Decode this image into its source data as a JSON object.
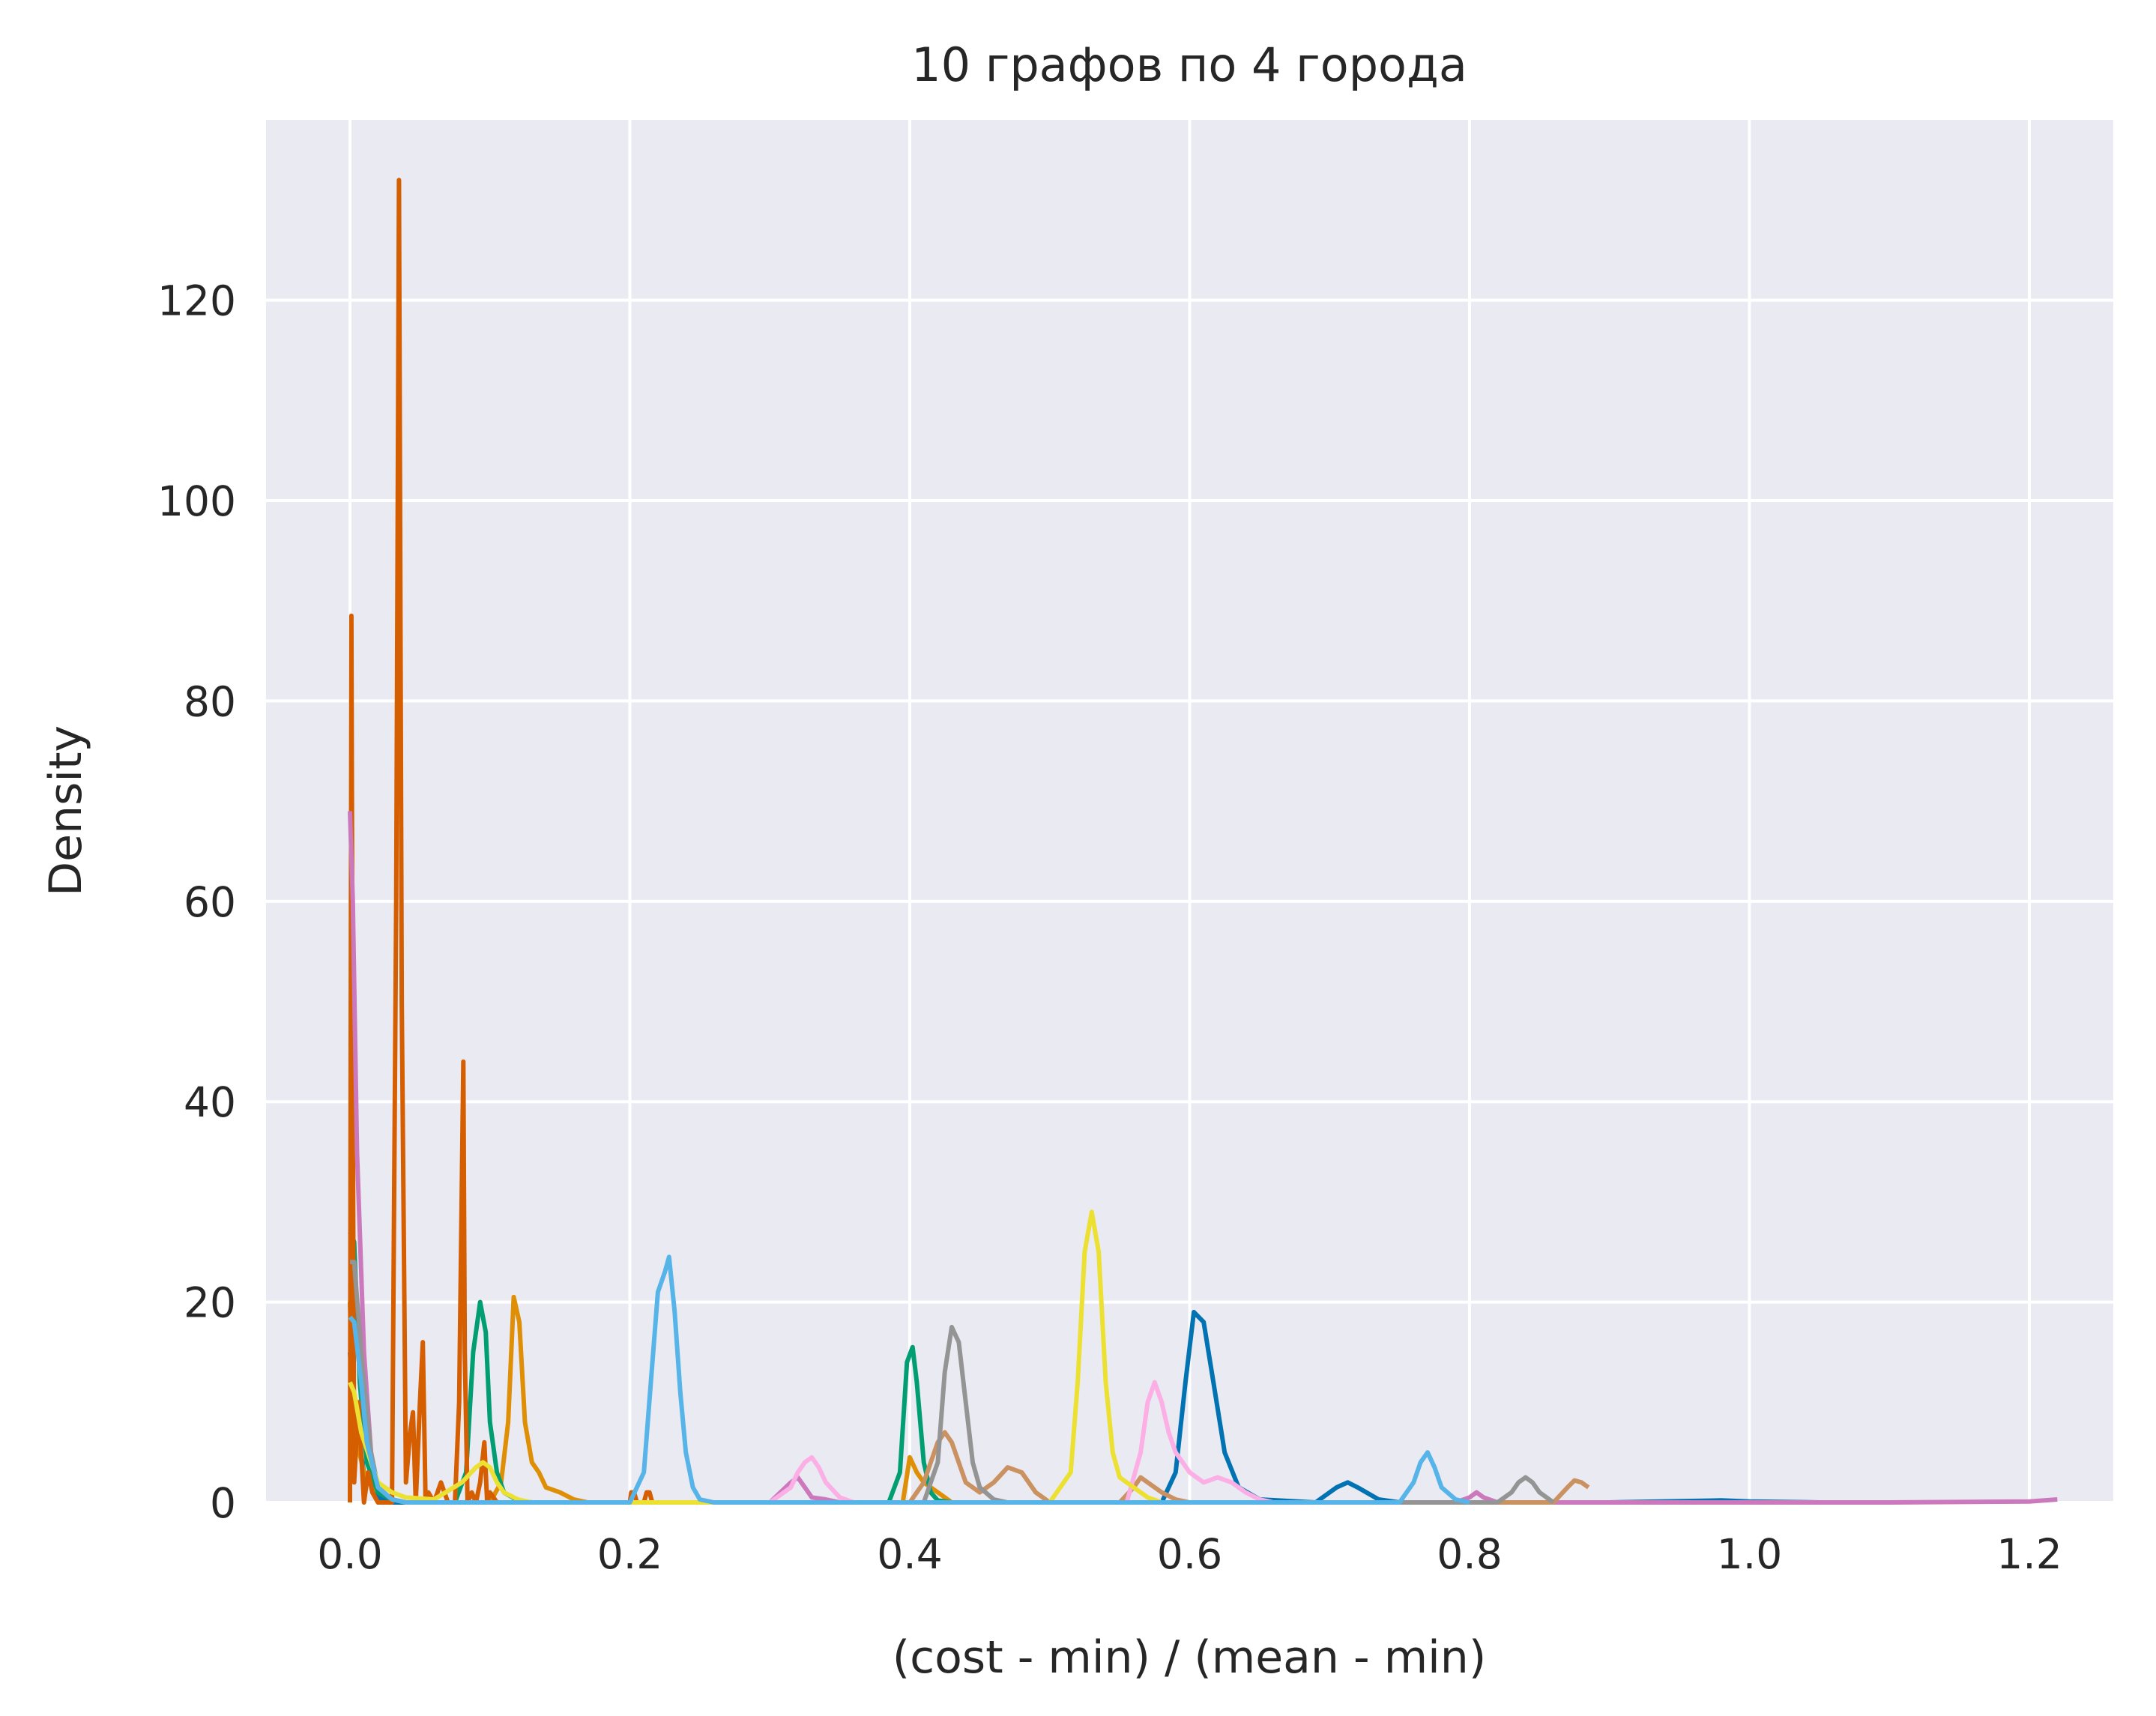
{
  "chart_data": {
    "type": "line",
    "title": "10 графов по 4 города",
    "xlabel": "(cost - min) / (mean - min)",
    "ylabel": "Density",
    "xlim": [
      -0.06,
      1.26
    ],
    "ylim": [
      0,
      138
    ],
    "xticks": [
      0.0,
      0.2,
      0.4,
      0.6,
      0.8,
      1.0,
      1.2
    ],
    "xtick_labels": [
      "0.0",
      "0.2",
      "0.4",
      "0.6",
      "0.8",
      "1.0",
      "1.2"
    ],
    "yticks": [
      0,
      20,
      40,
      60,
      80,
      100,
      120
    ],
    "ytick_labels": [
      "0",
      "20",
      "40",
      "60",
      "80",
      "100",
      "120"
    ],
    "grid": true,
    "legend": "none",
    "colors": {
      "background": "#eaeaf2",
      "grid": "#ffffff",
      "text": "#262626"
    },
    "series": [
      {
        "color": "#0173b2",
        "x": [
          0.0,
          0.003,
          0.01,
          0.02,
          0.03,
          0.58,
          0.59,
          0.597,
          0.603,
          0.61,
          0.617,
          0.625,
          0.635,
          0.65,
          0.69,
          0.705,
          0.713,
          0.72,
          0.735,
          0.75,
          0.9,
          0.98,
          1.0,
          1.05
        ],
        "y": [
          15,
          9,
          3,
          0.5,
          0,
          0,
          3,
          12,
          19,
          18,
          12,
          5,
          1.5,
          0.3,
          0,
          1.5,
          2,
          1.5,
          0.3,
          0,
          0,
          0.2,
          0.1,
          0
        ]
      },
      {
        "color": "#de8f05",
        "x": [
          0.0,
          0.002,
          0.005,
          0.01,
          0.02,
          0.03,
          0.04,
          0.1,
          0.108,
          0.113,
          0.117,
          0.121,
          0.125,
          0.13,
          0.135,
          0.14,
          0.15,
          0.16,
          0.17,
          0.2,
          0.395,
          0.4,
          0.405,
          0.41,
          0.42,
          0.43
        ],
        "y": [
          20,
          10,
          6,
          3,
          1,
          0.3,
          0,
          0,
          2,
          8,
          20.5,
          18,
          8,
          4,
          3,
          1.5,
          1,
          0.3,
          0,
          0,
          0,
          4.5,
          3,
          2,
          1,
          0
        ]
      },
      {
        "color": "#029e73",
        "x": [
          0.0,
          0.003,
          0.007,
          0.012,
          0.02,
          0.03,
          0.04,
          0.075,
          0.083,
          0.088,
          0.093,
          0.097,
          0.1,
          0.105,
          0.11,
          0.12,
          0.13,
          0.385,
          0.393,
          0.398,
          0.402,
          0.405,
          0.41,
          0.415,
          0.42,
          0.43
        ],
        "y": [
          27,
          26,
          12,
          4,
          1,
          0.3,
          0,
          0,
          3,
          15,
          20,
          17,
          8,
          3,
          1,
          0.2,
          0,
          0,
          3,
          14,
          15.5,
          12,
          4,
          1,
          0.2,
          0
        ]
      },
      {
        "color": "#d55e00",
        "x": [
          0.0,
          0.001,
          0.002,
          0.003,
          0.006,
          0.01,
          0.013,
          0.016,
          0.02,
          0.03,
          0.033,
          0.035,
          0.037,
          0.04,
          0.043,
          0.045,
          0.047,
          0.05,
          0.052,
          0.054,
          0.056,
          0.06,
          0.065,
          0.07,
          0.075,
          0.078,
          0.081,
          0.082,
          0.084,
          0.087,
          0.09,
          0.093,
          0.096,
          0.098,
          0.1,
          0.105,
          0.2,
          0.201,
          0.203,
          0.205,
          0.21,
          0.212,
          0.214,
          0.216
        ],
        "y": [
          0,
          88.5,
          40,
          2,
          10,
          0,
          3,
          1,
          0,
          0,
          60,
          132,
          50,
          2,
          7,
          9,
          0,
          10,
          16,
          0,
          1,
          0,
          2,
          0,
          0,
          10,
          44,
          15,
          0,
          1,
          0,
          2,
          6,
          0,
          1,
          0,
          0,
          1,
          1,
          0,
          0,
          1,
          1,
          0
        ]
      },
      {
        "color": "#cc78bc",
        "x": [
          0.0,
          0.002,
          0.005,
          0.01,
          0.015,
          0.02,
          0.03,
          0.04,
          0.3,
          0.315,
          0.32,
          0.325,
          0.33,
          0.34,
          0.35,
          0.79,
          0.8,
          0.805,
          0.81,
          0.82,
          1.1,
          1.2,
          1.22
        ],
        "y": [
          69,
          60,
          35,
          15,
          5,
          1.5,
          0.3,
          0,
          0,
          2,
          2.5,
          1.5,
          0.5,
          0.3,
          0,
          0,
          0.5,
          1,
          0.5,
          0,
          0,
          0.1,
          0.3
        ]
      },
      {
        "color": "#ca9161",
        "x": [
          0.4,
          0.41,
          0.415,
          0.42,
          0.425,
          0.43,
          0.44,
          0.45,
          0.46,
          0.47,
          0.48,
          0.49,
          0.5,
          0.55,
          0.56,
          0.565,
          0.57,
          0.58,
          0.59,
          0.6,
          0.86,
          0.87,
          0.875,
          0.88,
          0.885
        ],
        "y": [
          0,
          2,
          4,
          6,
          7,
          6,
          2,
          1,
          2,
          3.5,
          3,
          1,
          0,
          0,
          1.5,
          2.5,
          2,
          1,
          0.3,
          0,
          0,
          1.5,
          2.2,
          2,
          1.5
        ]
      },
      {
        "color": "#fbafe4",
        "x": [
          0.3,
          0.315,
          0.32,
          0.325,
          0.33,
          0.335,
          0.34,
          0.35,
          0.36,
          0.555,
          0.565,
          0.57,
          0.575,
          0.58,
          0.585,
          0.59,
          0.6,
          0.61,
          0.62,
          0.63,
          0.64,
          0.65,
          0.66
        ],
        "y": [
          0,
          1.5,
          3,
          4,
          4.5,
          3.5,
          2,
          0.5,
          0,
          0,
          5,
          10,
          12,
          10,
          7,
          5,
          3,
          2,
          2.5,
          2,
          1,
          0.3,
          0
        ]
      },
      {
        "color": "#949494",
        "x": [
          0.0,
          0.003,
          0.008,
          0.015,
          0.02,
          0.03,
          0.04,
          0.41,
          0.42,
          0.425,
          0.43,
          0.435,
          0.44,
          0.445,
          0.45,
          0.46,
          0.47,
          0.82,
          0.83,
          0.835,
          0.84,
          0.845,
          0.85,
          0.86
        ],
        "y": [
          24,
          24,
          15,
          5,
          1.5,
          0.3,
          0,
          0,
          4,
          13,
          17.5,
          16,
          10,
          4,
          1.5,
          0.3,
          0,
          0,
          1,
          2,
          2.5,
          2,
          1,
          0
        ]
      },
      {
        "color": "#ece133",
        "x": [
          0.0,
          0.003,
          0.008,
          0.015,
          0.02,
          0.025,
          0.03,
          0.04,
          0.06,
          0.08,
          0.09,
          0.095,
          0.1,
          0.105,
          0.11,
          0.12,
          0.13,
          0.5,
          0.515,
          0.52,
          0.525,
          0.53,
          0.535,
          0.54,
          0.545,
          0.55,
          0.56,
          0.57,
          0.58
        ],
        "y": [
          12,
          11,
          7,
          4,
          2,
          1.5,
          1,
          0.5,
          0.3,
          2,
          3.5,
          4,
          3.5,
          2,
          1,
          0.3,
          0,
          0,
          3,
          12,
          25,
          29,
          25,
          12,
          5,
          2.5,
          1.5,
          0.5,
          0
        ]
      },
      {
        "color": "#56b4e9",
        "x": [
          0.0,
          0.003,
          0.008,
          0.012,
          0.02,
          0.03,
          0.04,
          0.2,
          0.21,
          0.215,
          0.22,
          0.225,
          0.228,
          0.232,
          0.236,
          0.24,
          0.245,
          0.25,
          0.26,
          0.27,
          0.75,
          0.76,
          0.765,
          0.77,
          0.775,
          0.78,
          0.79,
          0.8
        ],
        "y": [
          18.5,
          18,
          12,
          6,
          1.5,
          0.3,
          0,
          0,
          3,
          12,
          21,
          23,
          24.5,
          19,
          11,
          5,
          1.5,
          0.3,
          0,
          0,
          0,
          2,
          4,
          5,
          3.5,
          1.5,
          0.3,
          0
        ]
      }
    ]
  }
}
